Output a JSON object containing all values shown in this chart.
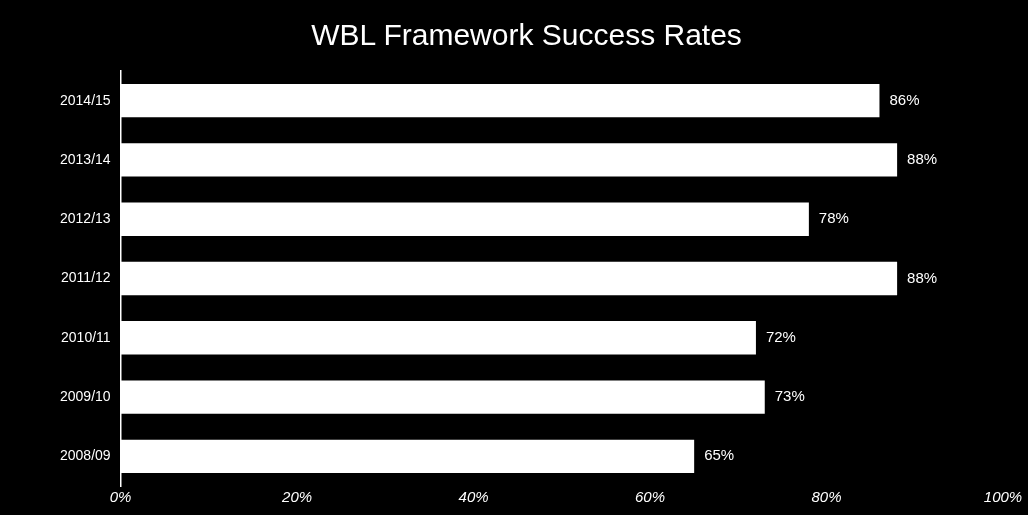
{
  "chart_data": {
    "type": "bar",
    "orientation": "horizontal",
    "title": "WBL Framework Success Rates",
    "categories": [
      "2014/15",
      "2013/14",
      "2012/13",
      "2011/12",
      "2010/11",
      "2009/10",
      "2008/09"
    ],
    "values": [
      86,
      88,
      78,
      88,
      72,
      73,
      65
    ],
    "value_labels": [
      "86%",
      "88%",
      "78%",
      "88%",
      "72%",
      "73%",
      "65%"
    ],
    "color": "#ffffff",
    "xlim": [
      0,
      100
    ],
    "xticks": [
      {
        "value": 0,
        "label": "0%"
      },
      {
        "value": 20,
        "label": "20%"
      },
      {
        "value": 40,
        "label": "40%"
      },
      {
        "value": 60,
        "label": "60%"
      },
      {
        "value": 80,
        "label": "80%"
      },
      {
        "value": 100,
        "label": "100%"
      }
    ],
    "grid": false,
    "legend": false
  }
}
